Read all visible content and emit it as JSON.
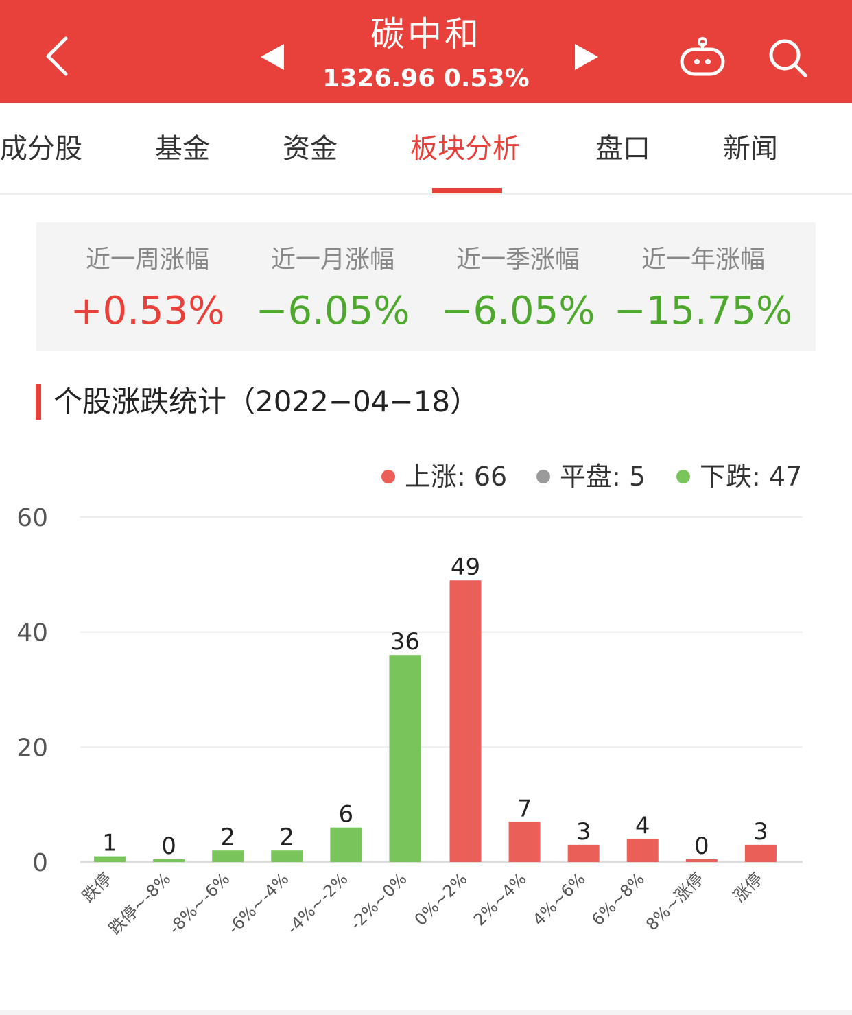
{
  "header": {
    "title": "碳中和",
    "subtitle": "1326.96 0.53%",
    "icons": [
      "back-chevron-icon",
      "prev-triangle-icon",
      "next-triangle-icon",
      "robot-icon",
      "search-icon"
    ]
  },
  "tabs": [
    {
      "label": "成分股"
    },
    {
      "label": "基金"
    },
    {
      "label": "资金"
    },
    {
      "label": "板块分析"
    },
    {
      "label": "盘口"
    },
    {
      "label": "新闻"
    }
  ],
  "stats": [
    {
      "label": "近一周涨幅",
      "value": "+0.53%"
    },
    {
      "label": "近一月涨幅",
      "value": "−6.05%"
    },
    {
      "label": "近一季涨幅",
      "value": "−6.05%"
    },
    {
      "label": "近一年涨幅",
      "value": "−15.75%"
    }
  ],
  "section": {
    "title": "个股涨跌统计（2022−04−18）"
  },
  "legend": [
    {
      "label": "上涨: 66"
    },
    {
      "label": "平盘: 5"
    },
    {
      "label": "下跌: 47"
    }
  ],
  "colors": {
    "brand_red": "#e8403a",
    "up_red": "#ea5f57",
    "down_green": "#7ac55b",
    "flat_gray": "#9a9a9a",
    "text_dark": "#333333",
    "text_gray": "#888888"
  },
  "chart_data": {
    "type": "bar",
    "title": "",
    "xlabel": "",
    "ylabel": "",
    "ylim": [
      0,
      60
    ],
    "yticks": [
      0,
      20,
      40,
      60
    ],
    "grid": true,
    "legend_position": "top-right",
    "categories": [
      "跌停",
      "跌停~-8%",
      "-8%~-6%",
      "-6%~-4%",
      "-4%~-2%",
      "-2%~0%",
      "0%~2%",
      "2%~4%",
      "4%~6%",
      "6%~8%",
      "8%~涨停",
      "涨停"
    ],
    "values": [
      1,
      0,
      2,
      2,
      6,
      36,
      49,
      7,
      3,
      4,
      0,
      3
    ],
    "bar_colors": [
      "#7ac55b",
      "#7ac55b",
      "#7ac55b",
      "#7ac55b",
      "#7ac55b",
      "#7ac55b",
      "#ea5f57",
      "#ea5f57",
      "#ea5f57",
      "#ea5f57",
      "#ea5f57",
      "#ea5f57"
    ]
  }
}
